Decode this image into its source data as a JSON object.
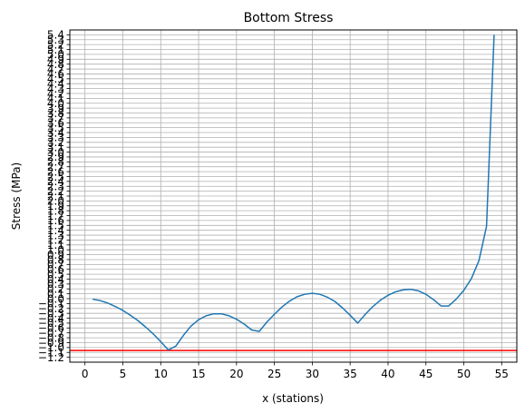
{
  "chart_data": {
    "type": "line",
    "title": "Bottom Stress",
    "xlabel": "x (stations)",
    "ylabel": "Stress (MPa)",
    "xlim": [
      -2,
      57
    ],
    "ylim": [
      -1.3,
      5.5
    ],
    "grid": true,
    "xticks": [
      0,
      5,
      10,
      15,
      20,
      25,
      30,
      35,
      40,
      45,
      50,
      55
    ],
    "xtick_labels": [
      "0",
      "5",
      "10",
      "15",
      "20",
      "25",
      "30",
      "35",
      "40",
      "45",
      "50",
      "55"
    ],
    "yticks": [
      -1.2,
      -1.1,
      -1.0,
      -0.9,
      -0.8,
      -0.7,
      -0.6,
      -0.5,
      -0.4,
      -0.3,
      -0.2,
      -0.1,
      0.0,
      0.1,
      0.2,
      0.3,
      0.4,
      0.5,
      0.6,
      0.7,
      0.8,
      0.9,
      1.0,
      1.1,
      1.2,
      1.3,
      1.4,
      1.5,
      1.6,
      1.7,
      1.8,
      1.9,
      2.0,
      2.1,
      2.2,
      2.3,
      2.4,
      2.5,
      2.6,
      2.7,
      2.8,
      2.9,
      3.0,
      3.1,
      3.2,
      3.3,
      3.4,
      3.5,
      3.6,
      3.7,
      3.8,
      3.9,
      4.0,
      4.1,
      4.2,
      4.3,
      4.4,
      4.5,
      4.6,
      4.7,
      4.8,
      4.9,
      5.0,
      5.1,
      5.2,
      5.3,
      5.4
    ],
    "ytick_labels": [
      "−1.2",
      "−1.1",
      "−1.0",
      "−0.9",
      "−0.8",
      "−0.7",
      "−0.6",
      "−0.5",
      "−0.4",
      "−0.3",
      "−0.2",
      "−0.1",
      "0.0",
      "0.1",
      "0.2",
      "0.3",
      "0.4",
      "0.5",
      "0.6",
      "0.7",
      "0.8",
      "0.9",
      "1.0",
      "1.1",
      "1.2",
      "1.3",
      "1.4",
      "1.5",
      "1.6",
      "1.7",
      "1.8",
      "1.9",
      "2.0",
      "2.1",
      "2.2",
      "2.3",
      "2.4",
      "2.5",
      "2.6",
      "2.7",
      "2.8",
      "2.9",
      "3.0",
      "3.1",
      "3.2",
      "3.3",
      "3.4",
      "3.5",
      "3.6",
      "3.7",
      "3.8",
      "3.9",
      "4.0",
      "4.1",
      "4.2",
      "4.3",
      "4.4",
      "4.5",
      "4.6",
      "4.7",
      "4.8",
      "4.9",
      "5.0",
      "5.1",
      "5.2",
      "5.3",
      "5.4"
    ],
    "series": [
      {
        "color": "#1f77b4",
        "x": [
          1,
          2,
          3,
          4,
          5,
          6,
          7,
          8,
          9,
          10,
          11,
          12,
          13,
          14,
          15,
          16,
          17,
          18,
          19,
          20,
          21,
          22,
          23,
          24,
          25,
          26,
          27,
          28,
          29,
          30,
          31,
          32,
          33,
          34,
          35,
          36,
          37,
          38,
          39,
          40,
          41,
          42,
          43,
          44,
          45,
          46,
          47,
          48,
          49,
          50,
          51,
          52,
          53,
          54
        ],
        "y": [
          -0.01,
          -0.04,
          -0.09,
          -0.16,
          -0.24,
          -0.34,
          -0.45,
          -0.58,
          -0.72,
          -0.88,
          -1.05,
          -0.97,
          -0.75,
          -0.56,
          -0.43,
          -0.35,
          -0.31,
          -0.31,
          -0.35,
          -0.42,
          -0.52,
          -0.64,
          -0.67,
          -0.48,
          -0.32,
          -0.17,
          -0.05,
          0.04,
          0.09,
          0.11,
          0.09,
          0.03,
          -0.06,
          -0.19,
          -0.34,
          -0.5,
          -0.32,
          -0.16,
          -0.03,
          0.07,
          0.14,
          0.18,
          0.19,
          0.16,
          0.09,
          -0.02,
          -0.15,
          -0.15,
          -0.01,
          0.17,
          0.41,
          0.78,
          1.48,
          5.4
        ]
      }
    ],
    "hlines": [
      {
        "y": -1.06,
        "color": "#ff0000"
      }
    ]
  }
}
